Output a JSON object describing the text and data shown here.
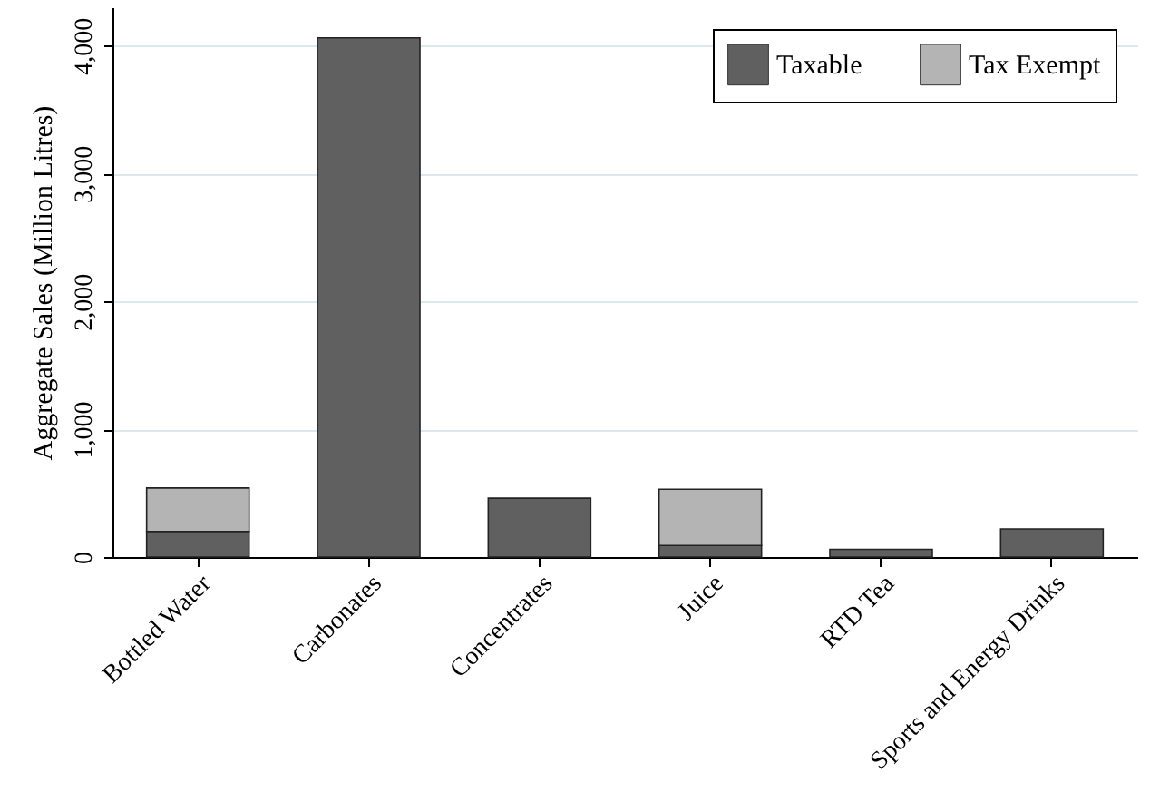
{
  "chart_data": {
    "type": "bar",
    "ylabel": "Aggregate Sales (Million Litres)",
    "categories": [
      "Bottled Water",
      "Carbonates",
      "Concentrates",
      "Juice",
      "RTD Tea",
      "Sports and Energy Drinks"
    ],
    "series": [
      {
        "name": "Taxable",
        "color": "#606060",
        "values": [
          200,
          4060,
          460,
          90,
          60,
          220
        ]
      },
      {
        "name": "Tax Exempt",
        "color": "#b4b4b4",
        "values": [
          340,
          null,
          null,
          440,
          null,
          null
        ]
      }
    ],
    "stacked": true,
    "ylim": [
      0,
      4300
    ],
    "yticks": [
      {
        "value": 0,
        "label": "0"
      },
      {
        "value": 1000,
        "label": "1,000"
      },
      {
        "value": 2000,
        "label": "2,000"
      },
      {
        "value": 3000,
        "label": "3,000"
      },
      {
        "value": 4000,
        "label": "4,000"
      }
    ],
    "grid": "y",
    "legend": "top right"
  }
}
